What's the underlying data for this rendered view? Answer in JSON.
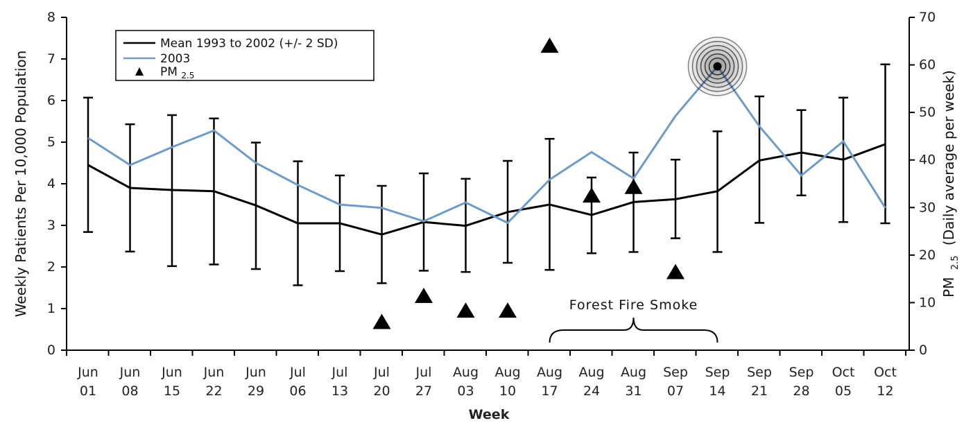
{
  "chart_data": {
    "type": "line",
    "xlabel": "Week",
    "ylabel": "Weekly Patients Per 10,000 Population",
    "y2label_prefix": "PM",
    "y2label_sub": "2.5",
    "y2label_suffix": "(Daily average per week)",
    "ylim": [
      0,
      8
    ],
    "y2lim": [
      0,
      70
    ],
    "yticks": [
      "0",
      "1",
      "2",
      "3",
      "4",
      "5",
      "6",
      "7",
      "8"
    ],
    "y2ticks": [
      "0",
      "10",
      "20",
      "30",
      "40",
      "50",
      "60",
      "70"
    ],
    "categories": [
      {
        "month": "Jun",
        "day": "01"
      },
      {
        "month": "Jun",
        "day": "08"
      },
      {
        "month": "Jun",
        "day": "15"
      },
      {
        "month": "Jun",
        "day": "22"
      },
      {
        "month": "Jun",
        "day": "29"
      },
      {
        "month": "Jul",
        "day": "06"
      },
      {
        "month": "Jul",
        "day": "13"
      },
      {
        "month": "Jul",
        "day": "20"
      },
      {
        "month": "Jul",
        "day": "27"
      },
      {
        "month": "Aug",
        "day": "03"
      },
      {
        "month": "Aug",
        "day": "10"
      },
      {
        "month": "Aug",
        "day": "17"
      },
      {
        "month": "Aug",
        "day": "24"
      },
      {
        "month": "Aug",
        "day": "31"
      },
      {
        "month": "Sep",
        "day": "07"
      },
      {
        "month": "Sep",
        "day": "14"
      },
      {
        "month": "Sep",
        "day": "21"
      },
      {
        "month": "Sep",
        "day": "28"
      },
      {
        "month": "Oct",
        "day": "05"
      },
      {
        "month": "Oct",
        "day": "12"
      }
    ],
    "series": [
      {
        "name": "Mean 1993 to 2002 (+/- 2 SD)",
        "color": "#000000",
        "values": [
          4.45,
          3.9,
          3.85,
          3.82,
          3.48,
          3.05,
          3.05,
          2.78,
          3.08,
          2.99,
          3.32,
          3.5,
          3.25,
          3.56,
          3.63,
          3.82,
          4.56,
          4.75,
          4.58,
          4.95
        ],
        "upper": [
          6.07,
          5.43,
          5.65,
          5.57,
          4.99,
          4.54,
          4.2,
          3.95,
          4.25,
          4.12,
          4.55,
          5.08,
          4.15,
          4.75,
          4.58,
          5.26,
          6.1,
          5.77,
          6.07,
          6.87
        ],
        "lower": [
          2.84,
          2.37,
          2.02,
          2.06,
          1.95,
          1.56,
          1.9,
          1.61,
          1.91,
          1.88,
          2.1,
          1.93,
          2.33,
          2.36,
          2.69,
          2.36,
          3.06,
          3.72,
          3.08,
          3.05
        ]
      },
      {
        "name": "2003",
        "color": "#6b9bc8",
        "values": [
          5.1,
          4.45,
          4.88,
          5.28,
          4.5,
          3.97,
          3.5,
          3.42,
          3.1,
          3.55,
          3.06,
          4.1,
          4.76,
          4.13,
          5.63,
          6.82,
          5.38,
          4.2,
          5.02,
          3.42
        ]
      },
      {
        "name": "PM",
        "name_sub": "2.5",
        "axis": "right",
        "color": "#000000",
        "points": [
          {
            "x_index": 7,
            "value": 5.9
          },
          {
            "x_index": 8,
            "value": 11.4
          },
          {
            "x_index": 9,
            "value": 8.3
          },
          {
            "x_index": 10,
            "value": 8.3
          },
          {
            "x_index": 11,
            "value": 64.0
          },
          {
            "x_index": 12,
            "value": 32.5
          },
          {
            "x_index": 13,
            "value": 34.3
          },
          {
            "x_index": 14,
            "value": 16.4
          }
        ]
      }
    ],
    "highlight": {
      "x_index": 15,
      "value": 6.82
    },
    "annotation": {
      "text": "Forest Fire Smoke",
      "from_index": 11,
      "to_index": 15
    },
    "legend_position": "top-left",
    "grid": false
  }
}
